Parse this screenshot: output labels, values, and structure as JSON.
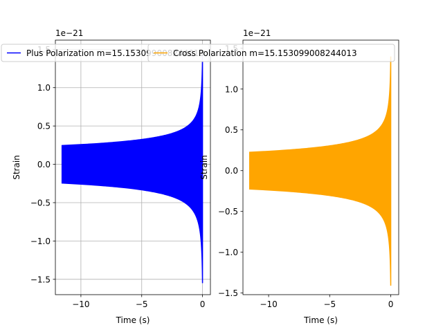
{
  "chart_data": [
    {
      "type": "line",
      "offset_text": "1e−21",
      "xlabel": "Time (s)",
      "ylabel": "Strain",
      "xlim": [
        -12.1,
        0.65
      ],
      "ylim": [
        -1.7,
        1.62
      ],
      "grid": true,
      "legend_position": "top-center",
      "series": [
        {
          "name": "Plus Polarization m=15.153099008244013",
          "color": "#0000ff",
          "envelope": {
            "t_start": -11.55,
            "t_end": 0,
            "amplitude_start": 0.245,
            "amplitude_end_upper": 1.42,
            "amplitude_end_lower": -1.55
          }
        }
      ],
      "xticks": [
        {
          "value": -10,
          "label": "−10"
        },
        {
          "value": -5,
          "label": "−5"
        },
        {
          "value": 0,
          "label": "0"
        }
      ],
      "yticks": [
        {
          "value": -1.5,
          "label": "−1.5"
        },
        {
          "value": -1.0,
          "label": "−1.0"
        },
        {
          "value": -0.5,
          "label": "−0.5"
        },
        {
          "value": 0.0,
          "label": "0.0"
        },
        {
          "value": 0.5,
          "label": "0.5"
        },
        {
          "value": 1.0,
          "label": "1.0"
        },
        {
          "value": 1.5,
          "label": "1.5"
        }
      ]
    },
    {
      "type": "line",
      "offset_text": "1e−21",
      "xlabel": "Time (s)",
      "ylabel": "Strain",
      "xlim": [
        -12.1,
        0.65
      ],
      "ylim": [
        -1.52,
        1.6
      ],
      "grid": false,
      "legend_position": "top-center",
      "series": [
        {
          "name": "Cross Polarization m=15.153099008244013",
          "color": "#ffa500",
          "envelope": {
            "t_start": -11.55,
            "t_end": 0,
            "amplitude_start": 0.225,
            "amplitude_end_upper": 1.4,
            "amplitude_end_lower": -1.41
          }
        }
      ],
      "xticks": [
        {
          "value": -10,
          "label": "−10"
        },
        {
          "value": -5,
          "label": "−5"
        },
        {
          "value": 0,
          "label": "0"
        }
      ],
      "yticks": [
        {
          "value": -1.5,
          "label": "−1.5"
        },
        {
          "value": -1.0,
          "label": "−1.0"
        },
        {
          "value": -0.5,
          "label": "−0.5"
        },
        {
          "value": 0.0,
          "label": "0.0"
        },
        {
          "value": 0.5,
          "label": "0.5"
        },
        {
          "value": 1.0,
          "label": "1.0"
        },
        {
          "value": 1.5,
          "label": "1.5"
        }
      ]
    }
  ]
}
